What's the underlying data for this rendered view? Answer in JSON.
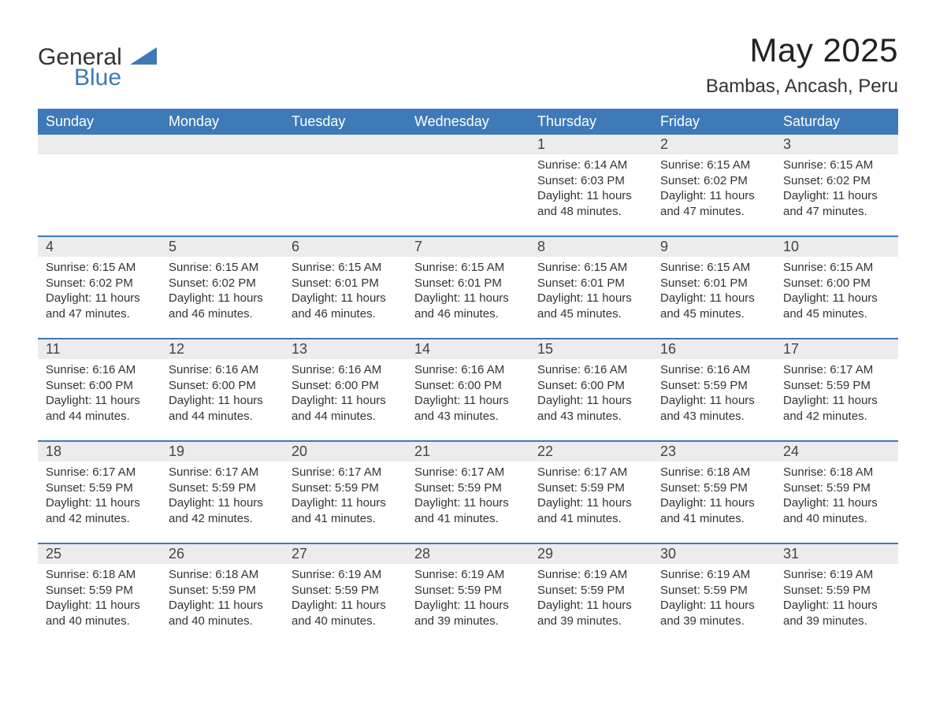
{
  "logo": {
    "general": "General",
    "blue": "Blue",
    "accent_color": "#3e7ab8"
  },
  "title": "May 2025",
  "location": "Bambas, Ancash, Peru",
  "header_bg": "#3e7ab8",
  "header_text": "#ffffff",
  "daynum_bg": "#ececec",
  "divider_color": "#3e7ab8",
  "weekdays": [
    "Sunday",
    "Monday",
    "Tuesday",
    "Wednesday",
    "Thursday",
    "Friday",
    "Saturday"
  ],
  "weeks": [
    [
      null,
      null,
      null,
      null,
      {
        "d": "1",
        "sunrise": "Sunrise: 6:14 AM",
        "sunset": "Sunset: 6:03 PM",
        "dl1": "Daylight: 11 hours",
        "dl2": "and 48 minutes."
      },
      {
        "d": "2",
        "sunrise": "Sunrise: 6:15 AM",
        "sunset": "Sunset: 6:02 PM",
        "dl1": "Daylight: 11 hours",
        "dl2": "and 47 minutes."
      },
      {
        "d": "3",
        "sunrise": "Sunrise: 6:15 AM",
        "sunset": "Sunset: 6:02 PM",
        "dl1": "Daylight: 11 hours",
        "dl2": "and 47 minutes."
      }
    ],
    [
      {
        "d": "4",
        "sunrise": "Sunrise: 6:15 AM",
        "sunset": "Sunset: 6:02 PM",
        "dl1": "Daylight: 11 hours",
        "dl2": "and 47 minutes."
      },
      {
        "d": "5",
        "sunrise": "Sunrise: 6:15 AM",
        "sunset": "Sunset: 6:02 PM",
        "dl1": "Daylight: 11 hours",
        "dl2": "and 46 minutes."
      },
      {
        "d": "6",
        "sunrise": "Sunrise: 6:15 AM",
        "sunset": "Sunset: 6:01 PM",
        "dl1": "Daylight: 11 hours",
        "dl2": "and 46 minutes."
      },
      {
        "d": "7",
        "sunrise": "Sunrise: 6:15 AM",
        "sunset": "Sunset: 6:01 PM",
        "dl1": "Daylight: 11 hours",
        "dl2": "and 46 minutes."
      },
      {
        "d": "8",
        "sunrise": "Sunrise: 6:15 AM",
        "sunset": "Sunset: 6:01 PM",
        "dl1": "Daylight: 11 hours",
        "dl2": "and 45 minutes."
      },
      {
        "d": "9",
        "sunrise": "Sunrise: 6:15 AM",
        "sunset": "Sunset: 6:01 PM",
        "dl1": "Daylight: 11 hours",
        "dl2": "and 45 minutes."
      },
      {
        "d": "10",
        "sunrise": "Sunrise: 6:15 AM",
        "sunset": "Sunset: 6:00 PM",
        "dl1": "Daylight: 11 hours",
        "dl2": "and 45 minutes."
      }
    ],
    [
      {
        "d": "11",
        "sunrise": "Sunrise: 6:16 AM",
        "sunset": "Sunset: 6:00 PM",
        "dl1": "Daylight: 11 hours",
        "dl2": "and 44 minutes."
      },
      {
        "d": "12",
        "sunrise": "Sunrise: 6:16 AM",
        "sunset": "Sunset: 6:00 PM",
        "dl1": "Daylight: 11 hours",
        "dl2": "and 44 minutes."
      },
      {
        "d": "13",
        "sunrise": "Sunrise: 6:16 AM",
        "sunset": "Sunset: 6:00 PM",
        "dl1": "Daylight: 11 hours",
        "dl2": "and 44 minutes."
      },
      {
        "d": "14",
        "sunrise": "Sunrise: 6:16 AM",
        "sunset": "Sunset: 6:00 PM",
        "dl1": "Daylight: 11 hours",
        "dl2": "and 43 minutes."
      },
      {
        "d": "15",
        "sunrise": "Sunrise: 6:16 AM",
        "sunset": "Sunset: 6:00 PM",
        "dl1": "Daylight: 11 hours",
        "dl2": "and 43 minutes."
      },
      {
        "d": "16",
        "sunrise": "Sunrise: 6:16 AM",
        "sunset": "Sunset: 5:59 PM",
        "dl1": "Daylight: 11 hours",
        "dl2": "and 43 minutes."
      },
      {
        "d": "17",
        "sunrise": "Sunrise: 6:17 AM",
        "sunset": "Sunset: 5:59 PM",
        "dl1": "Daylight: 11 hours",
        "dl2": "and 42 minutes."
      }
    ],
    [
      {
        "d": "18",
        "sunrise": "Sunrise: 6:17 AM",
        "sunset": "Sunset: 5:59 PM",
        "dl1": "Daylight: 11 hours",
        "dl2": "and 42 minutes."
      },
      {
        "d": "19",
        "sunrise": "Sunrise: 6:17 AM",
        "sunset": "Sunset: 5:59 PM",
        "dl1": "Daylight: 11 hours",
        "dl2": "and 42 minutes."
      },
      {
        "d": "20",
        "sunrise": "Sunrise: 6:17 AM",
        "sunset": "Sunset: 5:59 PM",
        "dl1": "Daylight: 11 hours",
        "dl2": "and 41 minutes."
      },
      {
        "d": "21",
        "sunrise": "Sunrise: 6:17 AM",
        "sunset": "Sunset: 5:59 PM",
        "dl1": "Daylight: 11 hours",
        "dl2": "and 41 minutes."
      },
      {
        "d": "22",
        "sunrise": "Sunrise: 6:17 AM",
        "sunset": "Sunset: 5:59 PM",
        "dl1": "Daylight: 11 hours",
        "dl2": "and 41 minutes."
      },
      {
        "d": "23",
        "sunrise": "Sunrise: 6:18 AM",
        "sunset": "Sunset: 5:59 PM",
        "dl1": "Daylight: 11 hours",
        "dl2": "and 41 minutes."
      },
      {
        "d": "24",
        "sunrise": "Sunrise: 6:18 AM",
        "sunset": "Sunset: 5:59 PM",
        "dl1": "Daylight: 11 hours",
        "dl2": "and 40 minutes."
      }
    ],
    [
      {
        "d": "25",
        "sunrise": "Sunrise: 6:18 AM",
        "sunset": "Sunset: 5:59 PM",
        "dl1": "Daylight: 11 hours",
        "dl2": "and 40 minutes."
      },
      {
        "d": "26",
        "sunrise": "Sunrise: 6:18 AM",
        "sunset": "Sunset: 5:59 PM",
        "dl1": "Daylight: 11 hours",
        "dl2": "and 40 minutes."
      },
      {
        "d": "27",
        "sunrise": "Sunrise: 6:19 AM",
        "sunset": "Sunset: 5:59 PM",
        "dl1": "Daylight: 11 hours",
        "dl2": "and 40 minutes."
      },
      {
        "d": "28",
        "sunrise": "Sunrise: 6:19 AM",
        "sunset": "Sunset: 5:59 PM",
        "dl1": "Daylight: 11 hours",
        "dl2": "and 39 minutes."
      },
      {
        "d": "29",
        "sunrise": "Sunrise: 6:19 AM",
        "sunset": "Sunset: 5:59 PM",
        "dl1": "Daylight: 11 hours",
        "dl2": "and 39 minutes."
      },
      {
        "d": "30",
        "sunrise": "Sunrise: 6:19 AM",
        "sunset": "Sunset: 5:59 PM",
        "dl1": "Daylight: 11 hours",
        "dl2": "and 39 minutes."
      },
      {
        "d": "31",
        "sunrise": "Sunrise: 6:19 AM",
        "sunset": "Sunset: 5:59 PM",
        "dl1": "Daylight: 11 hours",
        "dl2": "and 39 minutes."
      }
    ]
  ]
}
